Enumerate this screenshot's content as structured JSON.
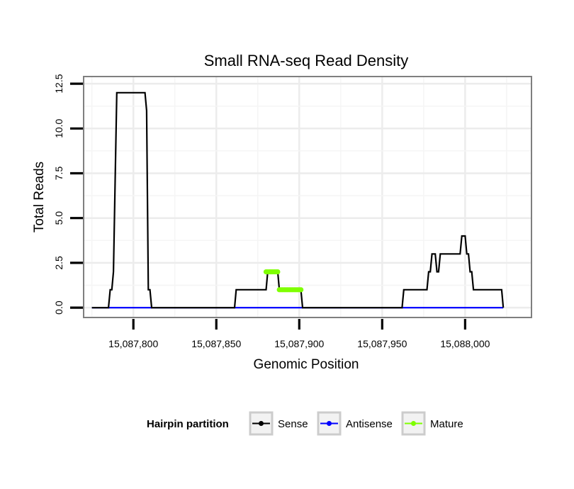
{
  "chart_data": {
    "type": "line",
    "title": "Small RNA-seq Read Density",
    "xlabel": "Genomic Position",
    "ylabel": "Total Reads",
    "xlim": [
      15087770,
      15088040
    ],
    "ylim": [
      -0.55,
      12.9
    ],
    "x_ticks": [
      15087800,
      15087850,
      15087900,
      15087950,
      15088000
    ],
    "x_tick_labels": [
      "15,087,800",
      "15,087,850",
      "15,087,900",
      "15,087,950",
      "15,088,000"
    ],
    "y_ticks": [
      0,
      2.5,
      5,
      7.5,
      10,
      12.5
    ],
    "y_tick_labels": [
      "0.0",
      "2.5",
      "5.0",
      "7.5",
      "10.0",
      "12.5"
    ],
    "grid": true,
    "legend": {
      "title": "Hairpin partition",
      "position": "bottom",
      "entries": [
        "Sense",
        "Antisense",
        "Mature"
      ]
    },
    "series": [
      {
        "name": "Sense",
        "color": "#000000",
        "points": [
          [
            15087775,
            0
          ],
          [
            15087785,
            0
          ],
          [
            15087786,
            1
          ],
          [
            15087787,
            1
          ],
          [
            15087788,
            2
          ],
          [
            15087790,
            12
          ],
          [
            15087807,
            12
          ],
          [
            15087808,
            11
          ],
          [
            15087809,
            1
          ],
          [
            15087810,
            1
          ],
          [
            15087811,
            0
          ],
          [
            15087861,
            0
          ],
          [
            15087862,
            1
          ],
          [
            15087880,
            1
          ],
          [
            15087881,
            2
          ],
          [
            15087887,
            2
          ],
          [
            15087888,
            1
          ],
          [
            15087901,
            1
          ],
          [
            15087902,
            0
          ],
          [
            15087962,
            0
          ],
          [
            15087963,
            1
          ],
          [
            15087977,
            1
          ],
          [
            15087978,
            2
          ],
          [
            15087979,
            2
          ],
          [
            15087980,
            3
          ],
          [
            15087982,
            3
          ],
          [
            15087983,
            2
          ],
          [
            15087984,
            2
          ],
          [
            15087985,
            3
          ],
          [
            15087997,
            3
          ],
          [
            15087998,
            4
          ],
          [
            15088000,
            4
          ],
          [
            15088001,
            3
          ],
          [
            15088002,
            3
          ],
          [
            15088003,
            2
          ],
          [
            15088004,
            2
          ],
          [
            15088005,
            1
          ],
          [
            15088022,
            1
          ],
          [
            15088023,
            0
          ]
        ]
      },
      {
        "name": "Antisense",
        "color": "#0000ff",
        "points": [
          [
            15087775,
            0
          ],
          [
            15088023,
            0
          ]
        ]
      },
      {
        "name": "Mature",
        "color": "#7fff00",
        "segments": [
          {
            "x": [
              15087880,
              15087887
            ],
            "y": 2
          },
          {
            "x": [
              15087888,
              15087901
            ],
            "y": 1
          }
        ]
      }
    ]
  }
}
